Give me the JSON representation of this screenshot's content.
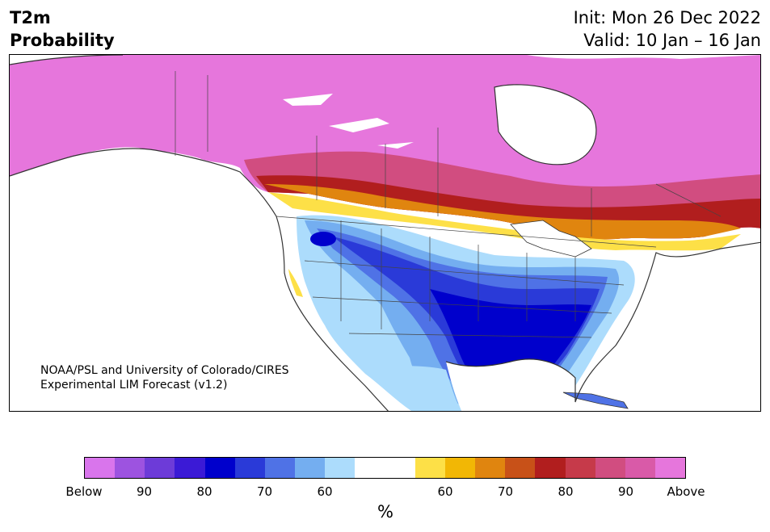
{
  "title": {
    "left_line1": "T2m",
    "left_line2": "Probability",
    "right_line1": "Init: Mon 26 Dec 2022",
    "right_line2": "Valid: 10 Jan – 16 Jan"
  },
  "credit": {
    "line1": "NOAA/PSL and University of Colorado/CIRES",
    "line2": "Experimental LIM Forecast (v1.2)"
  },
  "colorbar": {
    "colors": [
      "#d975ec",
      "#9d53e0",
      "#6d3bd8",
      "#3b1ad6",
      "#0000cc",
      "#2a3ad8",
      "#4f72e6",
      "#74aef0",
      "#acdcfc",
      "#ffffff",
      "#ffffff",
      "#fde047",
      "#f2b705",
      "#e0850f",
      "#c85118",
      "#b11e1e",
      "#c63a4a",
      "#d14d80",
      "#d95aa8",
      "#e676dc"
    ],
    "ticks": [
      {
        "label": "Below",
        "index": 0
      },
      {
        "label": "90",
        "index": 2
      },
      {
        "label": "80",
        "index": 4
      },
      {
        "label": "70",
        "index": 6
      },
      {
        "label": "60",
        "index": 8
      },
      {
        "label": "60",
        "index": 12
      },
      {
        "label": "70",
        "index": 14
      },
      {
        "label": "80",
        "index": 16
      },
      {
        "label": "90",
        "index": 18
      },
      {
        "label": "Above",
        "index": 20
      }
    ],
    "unit": "%"
  }
}
